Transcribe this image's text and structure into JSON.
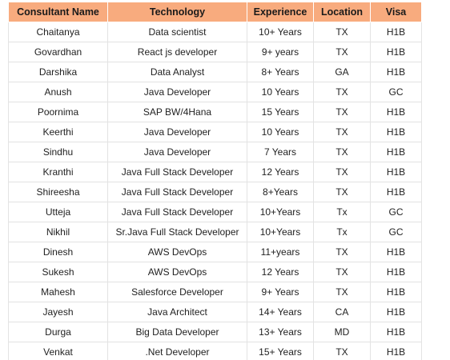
{
  "table": {
    "header_color": "#f8ab7e",
    "columns": [
      "Consultant Name",
      "Technology",
      "Experience",
      "Location",
      "Visa"
    ],
    "rows": [
      [
        "Chaitanya",
        "Data scientist",
        "10+ Years",
        "TX",
        "H1B"
      ],
      [
        "Govardhan",
        "React js developer",
        "9+ years",
        "TX",
        "H1B"
      ],
      [
        "Darshika",
        "Data Analyst",
        "8+ Years",
        "GA",
        "H1B"
      ],
      [
        "Anush",
        "Java Developer",
        "10 Years",
        "TX",
        "GC"
      ],
      [
        "Poornima",
        "SAP BW/4Hana",
        "15 Years",
        "TX",
        "H1B"
      ],
      [
        "Keerthi",
        "Java Developer",
        "10 Years",
        "TX",
        "H1B"
      ],
      [
        "Sindhu",
        "Java Developer",
        "7 Years",
        "TX",
        "H1B"
      ],
      [
        "Kranthi",
        "Java Full Stack Developer",
        "12 Years",
        "TX",
        "H1B"
      ],
      [
        "Shireesha",
        "Java Full Stack Developer",
        "8+Years",
        "TX",
        "H1B"
      ],
      [
        "Utteja",
        "Java Full Stack Developer",
        "10+Years",
        "Tx",
        "GC"
      ],
      [
        "Nikhil",
        "Sr.Java Full Stack Developer",
        "10+Years",
        "Tx",
        "GC"
      ],
      [
        "Dinesh",
        "AWS DevOps",
        "11+years",
        "TX",
        "H1B"
      ],
      [
        "Sukesh",
        "AWS DevOps",
        "12 Years",
        "TX",
        "H1B"
      ],
      [
        "Mahesh",
        "Salesforce Developer",
        "9+ Years",
        "TX",
        "H1B"
      ],
      [
        "Jayesh",
        "Java Architect",
        "14+ Years",
        "CA",
        "H1B"
      ],
      [
        "Durga",
        "Big Data Developer",
        "13+ Years",
        "MD",
        "H1B"
      ],
      [
        "Venkat",
        ".Net Developer",
        "15+ Years",
        "TX",
        "H1B"
      ]
    ]
  }
}
